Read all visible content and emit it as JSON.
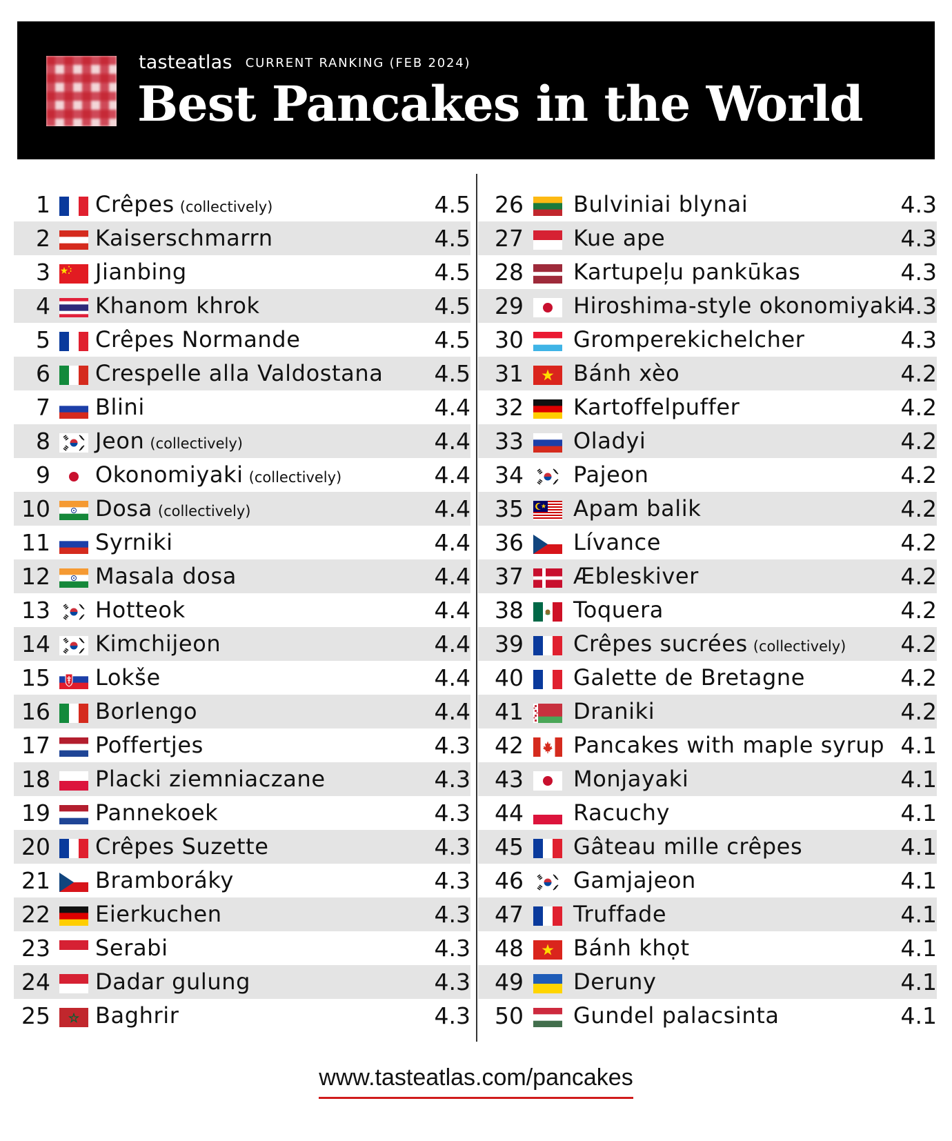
{
  "header": {
    "brand": "tasteatlas",
    "subtitle": "CURRENT RANKING (FEB 2024)",
    "title": "Best Pancakes in the World"
  },
  "ranking": [
    {
      "rank": "1",
      "flag": "France",
      "name": "Crêpes",
      "note": "(collectively)",
      "score": "4.5"
    },
    {
      "rank": "2",
      "flag": "Austria",
      "name": "Kaiserschmarrn",
      "note": "",
      "score": "4.5"
    },
    {
      "rank": "3",
      "flag": "China",
      "name": "Jianbing",
      "note": "",
      "score": "4.5"
    },
    {
      "rank": "4",
      "flag": "Thailand",
      "name": "Khanom khrok",
      "note": "",
      "score": "4.5"
    },
    {
      "rank": "5",
      "flag": "France",
      "name": "Crêpes Normande",
      "note": "",
      "score": "4.5"
    },
    {
      "rank": "6",
      "flag": "Italy",
      "name": "Crespelle alla Valdostana",
      "note": "",
      "score": "4.5"
    },
    {
      "rank": "7",
      "flag": "Russia",
      "name": "Blini",
      "note": "",
      "score": "4.4"
    },
    {
      "rank": "8",
      "flag": "South Korea",
      "name": "Jeon",
      "note": "(collectively)",
      "score": "4.4"
    },
    {
      "rank": "9",
      "flag": "Japan",
      "name": "Okonomiyaki",
      "note": "(collectively)",
      "score": "4.4"
    },
    {
      "rank": "10",
      "flag": "India",
      "name": "Dosa",
      "note": "(collectively)",
      "score": "4.4"
    },
    {
      "rank": "11",
      "flag": "Russia",
      "name": "Syrniki",
      "note": "",
      "score": "4.4"
    },
    {
      "rank": "12",
      "flag": "India",
      "name": "Masala dosa",
      "note": "",
      "score": "4.4"
    },
    {
      "rank": "13",
      "flag": "South Korea",
      "name": "Hotteok",
      "note": "",
      "score": "4.4"
    },
    {
      "rank": "14",
      "flag": "South Korea",
      "name": "Kimchijeon",
      "note": "",
      "score": "4.4"
    },
    {
      "rank": "15",
      "flag": "Slovakia",
      "name": "Lokše",
      "note": "",
      "score": "4.4"
    },
    {
      "rank": "16",
      "flag": "Italy",
      "name": "Borlengo",
      "note": "",
      "score": "4.4"
    },
    {
      "rank": "17",
      "flag": "Netherlands",
      "name": "Poffertjes",
      "note": "",
      "score": "4.3"
    },
    {
      "rank": "18",
      "flag": "Poland",
      "name": "Placki ziemniaczane",
      "note": "",
      "score": "4.3"
    },
    {
      "rank": "19",
      "flag": "Netherlands",
      "name": "Pannekoek",
      "note": "",
      "score": "4.3"
    },
    {
      "rank": "20",
      "flag": "France",
      "name": "Crêpes Suzette",
      "note": "",
      "score": "4.3"
    },
    {
      "rank": "21",
      "flag": "Czechia",
      "name": "Bramboráky",
      "note": "",
      "score": "4.3"
    },
    {
      "rank": "22",
      "flag": "Germany",
      "name": "Eierkuchen",
      "note": "",
      "score": "4.3"
    },
    {
      "rank": "23",
      "flag": "Indonesia",
      "name": "Serabi",
      "note": "",
      "score": "4.3"
    },
    {
      "rank": "24",
      "flag": "Indonesia",
      "name": "Dadar gulung",
      "note": "",
      "score": "4.3"
    },
    {
      "rank": "25",
      "flag": "Morocco",
      "name": "Baghrir",
      "note": "",
      "score": "4.3"
    },
    {
      "rank": "26",
      "flag": "Lithuania",
      "name": "Bulviniai blynai",
      "note": "",
      "score": "4.3"
    },
    {
      "rank": "27",
      "flag": "Indonesia",
      "name": "Kue ape",
      "note": "",
      "score": "4.3"
    },
    {
      "rank": "28",
      "flag": "Latvia",
      "name": "Kartupeļu pankūkas",
      "note": "",
      "score": "4.3"
    },
    {
      "rank": "29",
      "flag": "Japan",
      "name": "Hiroshima-style okonomiyaki",
      "note": "",
      "score": "4.3"
    },
    {
      "rank": "30",
      "flag": "Luxembourg",
      "name": "Gromperekichelcher",
      "note": "",
      "score": "4.3"
    },
    {
      "rank": "31",
      "flag": "Vietnam",
      "name": "Bánh xèo",
      "note": "",
      "score": "4.2"
    },
    {
      "rank": "32",
      "flag": "Germany",
      "name": "Kartoffelpuffer",
      "note": "",
      "score": "4.2"
    },
    {
      "rank": "33",
      "flag": "Russia",
      "name": "Oladyi",
      "note": "",
      "score": "4.2"
    },
    {
      "rank": "34",
      "flag": "South Korea",
      "name": "Pajeon",
      "note": "",
      "score": "4.2"
    },
    {
      "rank": "35",
      "flag": "Malaysia",
      "name": "Apam balik",
      "note": "",
      "score": "4.2"
    },
    {
      "rank": "36",
      "flag": "Czechia",
      "name": "Lívance",
      "note": "",
      "score": "4.2"
    },
    {
      "rank": "37",
      "flag": "Denmark",
      "name": "Æbleskiver",
      "note": "",
      "score": "4.2"
    },
    {
      "rank": "38",
      "flag": "Mexico",
      "name": "Toquera",
      "note": "",
      "score": "4.2"
    },
    {
      "rank": "39",
      "flag": "France",
      "name": "Crêpes sucrées",
      "note": "(collectively)",
      "score": "4.2"
    },
    {
      "rank": "40",
      "flag": "France",
      "name": "Galette de Bretagne",
      "note": "",
      "score": "4.2"
    },
    {
      "rank": "41",
      "flag": "Belarus",
      "name": "Draniki",
      "note": "",
      "score": "4.2"
    },
    {
      "rank": "42",
      "flag": "Canada",
      "name": "Pancakes with maple syrup",
      "note": "",
      "score": "4.1"
    },
    {
      "rank": "43",
      "flag": "Japan",
      "name": "Monjayaki",
      "note": "",
      "score": "4.1"
    },
    {
      "rank": "44",
      "flag": "Poland",
      "name": "Racuchy",
      "note": "",
      "score": "4.1"
    },
    {
      "rank": "45",
      "flag": "France",
      "name": "Gâteau mille crêpes",
      "note": "",
      "score": "4.1"
    },
    {
      "rank": "46",
      "flag": "South Korea",
      "name": "Gamjajeon",
      "note": "",
      "score": "4.1"
    },
    {
      "rank": "47",
      "flag": "France",
      "name": "Truffade",
      "note": "",
      "score": "4.1"
    },
    {
      "rank": "48",
      "flag": "Vietnam",
      "name": "Bánh khọt",
      "note": "",
      "score": "4.1"
    },
    {
      "rank": "49",
      "flag": "Ukraine",
      "name": "Deruny",
      "note": "",
      "score": "4.1"
    },
    {
      "rank": "50",
      "flag": "Hungary",
      "name": "Gundel palacsinta",
      "note": "",
      "score": "4.1"
    }
  ],
  "footer": {
    "url": "www.tasteatlas.com/pancakes"
  }
}
